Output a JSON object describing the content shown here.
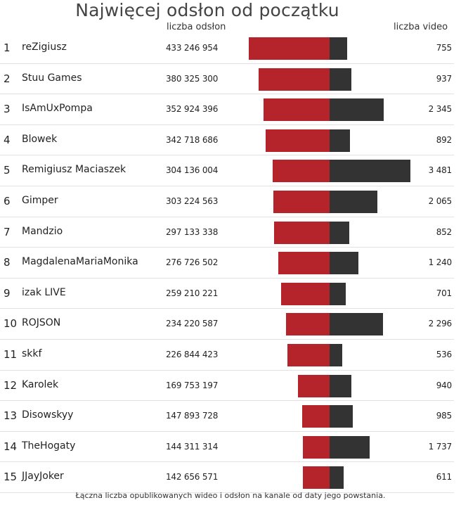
{
  "title": "Najwięcej odsłon od początku",
  "header": {
    "views_label": "liczba odsłon",
    "videos_label": "liczba video"
  },
  "footer": "Łączna liczba opublikowanych wideo i odsłon na kanale od daty jego powstania.",
  "colors": {
    "views_bar": "#b5232b",
    "videos_bar": "#333333"
  },
  "chart_data": {
    "type": "bar",
    "title": "Najwięcej odsłon od początku",
    "categories": [
      "reZigiusz",
      "Stuu Games",
      "IsAmUxPompa",
      "Blowek",
      "Remigiusz Maciaszek",
      "Gimper",
      "Mandzio",
      "MagdalenaMariaMonika",
      "izak LIVE",
      "ROJSON",
      "skkf",
      "Karolek",
      "Disowskyy",
      "TheHogaty",
      "JJayJoker"
    ],
    "ranks": [
      "1",
      "2",
      "3",
      "4",
      "5",
      "6",
      "7",
      "8",
      "9",
      "10",
      "11",
      "12",
      "13",
      "14",
      "15"
    ],
    "views_display": [
      "433 246 954",
      "380 325 300",
      "352 924 396",
      "342 718 686",
      "304 136 004",
      "303 224 563",
      "297 133 338",
      "276 726 502",
      "259 210 221",
      "234 220 587",
      "226 844 423",
      "169 753 197",
      "147 893 728",
      "144 311 314",
      "142 656 571"
    ],
    "videos_display": [
      "755",
      "937",
      "2 345",
      "892",
      "3 481",
      "2 065",
      "852",
      "1 240",
      "701",
      "2 296",
      "536",
      "940",
      "985",
      "1 737",
      "611"
    ],
    "series": [
      {
        "name": "liczba odsłon",
        "values": [
          433246954,
          380325300,
          352924396,
          342718686,
          304136004,
          303224563,
          297133338,
          276726502,
          259210221,
          234220587,
          226844423,
          169753197,
          147893728,
          144311314,
          142656571
        ]
      },
      {
        "name": "liczba video",
        "values": [
          755,
          937,
          2345,
          892,
          3481,
          2065,
          852,
          1240,
          701,
          2296,
          536,
          940,
          985,
          1737,
          611
        ]
      }
    ]
  }
}
